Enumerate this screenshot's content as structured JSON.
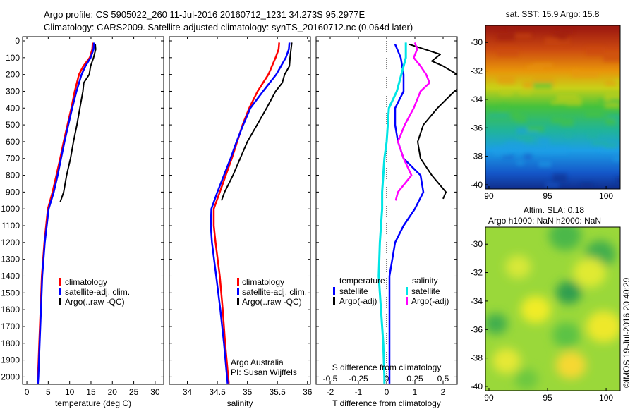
{
  "title": {
    "line1": "Argo profile: CS 5905022_260 11-Jul-2016 20160712_1231 34.273S 95.2977E",
    "line2": "Climatology: CARS2009. Satellite-adjusted climatology: synTS_20160712.nc (0.064d later)"
  },
  "colors": {
    "climatology": "#ff0000",
    "satellite": "#0000ff",
    "argo": "#000000",
    "argo_salinity_diff": "#ff00ff",
    "satellite_salinity_diff": "#00e5e5"
  },
  "depth_ticks": [
    "0",
    "100",
    "200",
    "300",
    "400",
    "500",
    "600",
    "700",
    "800",
    "900",
    "1000",
    "1100",
    "1200",
    "1300",
    "1400",
    "1500",
    "1600",
    "1700",
    "1800",
    "1900",
    "2000"
  ],
  "chart_data": [
    {
      "type": "line",
      "panel": "temperature",
      "xlabel": "temperature (deg C)",
      "xlim": [
        -1,
        32
      ],
      "ylim": [
        2060,
        0
      ],
      "x_ticks": [
        "0",
        "5",
        "10",
        "15",
        "20",
        "25",
        "30"
      ],
      "legend": [
        "climatology",
        "satellite-adj. clim.",
        "Argo(..raw -QC)"
      ],
      "series": [
        {
          "name": "climatology",
          "depth": [
            10,
            50,
            100,
            150,
            200,
            300,
            400,
            500,
            600,
            700,
            800,
            900,
            1000,
            1200,
            1400,
            1600,
            1800,
            2000,
            2040
          ],
          "values": [
            15.4,
            15.3,
            14.7,
            13.2,
            12.2,
            11.2,
            10.4,
            9.5,
            8.6,
            7.8,
            6.9,
            6.0,
            4.9,
            4.1,
            3.5,
            3.2,
            2.9,
            2.6,
            2.5
          ]
        },
        {
          "name": "satellite-adj. clim.",
          "depth": [
            10,
            50,
            100,
            150,
            200,
            300,
            400,
            500,
            600,
            700,
            800,
            900,
            1000,
            1200,
            1400,
            1600,
            1800,
            2000,
            2040
          ],
          "values": [
            15.7,
            15.6,
            14.9,
            13.7,
            12.8,
            11.6,
            10.6,
            9.7,
            8.8,
            8.0,
            7.2,
            6.3,
            5.1,
            4.2,
            3.6,
            3.3,
            3.0,
            2.7,
            2.6
          ]
        },
        {
          "name": "Argo(..raw -QC)",
          "depth": [
            20,
            50,
            100,
            150,
            200,
            250,
            300,
            400,
            500,
            600,
            700,
            800,
            900,
            960
          ],
          "values": [
            16.0,
            16.1,
            15.6,
            14.9,
            14.6,
            13.3,
            13.1,
            12.4,
            11.7,
            10.9,
            10.2,
            9.3,
            8.6,
            7.8
          ]
        }
      ]
    },
    {
      "type": "line",
      "panel": "salinity",
      "xlabel": "salinity",
      "xlim": [
        33.7,
        36.05
      ],
      "ylim": [
        2060,
        0
      ],
      "x_ticks": [
        "34",
        "34.5",
        "35",
        "35.5",
        "36"
      ],
      "legend": [
        "climatology",
        "satellite-adj. clim.",
        "Argo(..raw -QC)"
      ],
      "annotation": [
        "Argo Australia",
        "PI: Susan Wijffels"
      ],
      "series": [
        {
          "name": "climatology",
          "depth": [
            10,
            50,
            100,
            200,
            300,
            400,
            500,
            600,
            700,
            800,
            900,
            1000,
            1100,
            1200,
            1400,
            1600,
            1800,
            2000,
            2040
          ],
          "values": [
            35.53,
            35.52,
            35.47,
            35.35,
            35.17,
            35.03,
            34.92,
            34.83,
            34.74,
            34.64,
            34.54,
            34.44,
            34.44,
            34.47,
            34.54,
            34.59,
            34.63,
            34.68,
            34.69
          ]
        },
        {
          "name": "satellite-adj. clim.",
          "depth": [
            10,
            50,
            100,
            200,
            300,
            400,
            500,
            600,
            700,
            800,
            900,
            1000,
            1100,
            1200,
            1400,
            1600,
            1800,
            2000,
            2040
          ],
          "values": [
            35.7,
            35.69,
            35.64,
            35.48,
            35.26,
            35.05,
            34.93,
            34.82,
            34.72,
            34.61,
            34.5,
            34.4,
            34.39,
            34.41,
            34.48,
            34.55,
            34.61,
            34.66,
            34.67
          ]
        },
        {
          "name": "Argo(..raw -QC)",
          "depth": [
            10,
            100,
            150,
            200,
            250,
            300,
            400,
            500,
            600,
            700,
            800,
            900,
            950
          ],
          "values": [
            35.74,
            35.71,
            35.7,
            35.62,
            35.58,
            35.47,
            35.32,
            35.16,
            35.0,
            34.88,
            34.76,
            34.62,
            34.57
          ]
        }
      ]
    },
    {
      "type": "line",
      "panel": "difference",
      "xlabel": "T difference from climatology",
      "xlabel_top": "S difference from climatology",
      "t_xlim": [
        -2.5,
        2.5
      ],
      "t_ticks": [
        "-2",
        "-1",
        "0",
        "1",
        "2"
      ],
      "s_xlim": [
        -0.625,
        0.625
      ],
      "s_ticks": [
        "-0.5",
        "-0.25",
        "0",
        "0.25",
        "0.5"
      ],
      "ylim": [
        2060,
        0
      ],
      "legend_temperature_title": "temperature",
      "legend_salinity_title": "salinity",
      "legend_t": [
        "satellite",
        "Argo(-adj)"
      ],
      "legend_s": [
        "satellite",
        "Argo(-adj)"
      ],
      "series": [
        {
          "name": "T satellite",
          "variable": "T",
          "depth": [
            20,
            100,
            200,
            300,
            400,
            500,
            600,
            700,
            800,
            900,
            1000,
            1100,
            1200,
            1400,
            1600,
            1800,
            2000,
            2040
          ],
          "values": [
            0.3,
            0.5,
            0.6,
            0.6,
            0.3,
            0.3,
            0.4,
            0.6,
            1.2,
            1.3,
            1.0,
            0.6,
            0.3,
            0.1,
            0.1,
            0.1,
            0.1,
            0.1
          ]
        },
        {
          "name": "T Argo(-adj)",
          "variable": "T",
          "depth": [
            20,
            80,
            120,
            150,
            200,
            250,
            300,
            400,
            500,
            600,
            700,
            800,
            900,
            940
          ],
          "values": [
            0.8,
            1.9,
            1.6,
            2.0,
            2.5,
            2.9,
            2.4,
            1.8,
            1.3,
            1.1,
            1.2,
            1.6,
            2.1,
            2.0
          ]
        },
        {
          "name": "S satellite",
          "variable": "S",
          "depth": [
            10,
            50,
            100,
            200,
            300,
            400,
            500,
            600,
            700,
            800,
            900,
            1000,
            1100,
            1200,
            1400,
            1600,
            1800,
            2000,
            2040
          ],
          "values": [
            0.17,
            0.17,
            0.17,
            0.13,
            0.09,
            0.02,
            0.01,
            0.0,
            -0.02,
            -0.03,
            -0.04,
            -0.04,
            -0.05,
            -0.06,
            -0.07,
            -0.05,
            -0.03,
            -0.02,
            -0.02
          ]
        },
        {
          "name": "S Argo(-adj)",
          "variable": "S",
          "depth": [
            10,
            50,
            100,
            150,
            200,
            250,
            300,
            400,
            500,
            600,
            700,
            800,
            900,
            950
          ],
          "values": [
            0.25,
            0.27,
            0.24,
            0.3,
            0.35,
            0.38,
            0.3,
            0.24,
            0.16,
            0.1,
            0.15,
            0.22,
            0.1,
            0.08
          ]
        }
      ]
    },
    {
      "type": "heatmap",
      "panel": "sst_map",
      "title": "sat. SST: 15.9 Argo: 15.8",
      "xlim": [
        89.7,
        101.2
      ],
      "ylim": [
        -40.3,
        -28.8
      ],
      "x_ticks": [
        "90",
        "95",
        "100"
      ],
      "y_ticks": [
        "-30",
        "-32",
        "-34",
        "-36",
        "-38",
        "-40"
      ],
      "color_stops": [
        {
          "lat": -29.0,
          "color": "#9e1a10"
        },
        {
          "lat": -30.5,
          "color": "#cc4a10"
        },
        {
          "lat": -32.0,
          "color": "#e8950a"
        },
        {
          "lat": -33.2,
          "color": "#c8d018"
        },
        {
          "lat": -34.5,
          "color": "#46c23c"
        },
        {
          "lat": -36.2,
          "color": "#20b49a"
        },
        {
          "lat": -37.6,
          "color": "#1c9ee6"
        },
        {
          "lat": -39.2,
          "color": "#1456c8"
        },
        {
          "lat": -40.3,
          "color": "#102e8c"
        }
      ]
    },
    {
      "type": "heatmap",
      "panel": "sla_map",
      "title": "Altim. SLA: 0.18",
      "subtitle": "Argo h1000: NaN h2000: NaN",
      "xlim": [
        89.7,
        101.2
      ],
      "ylim": [
        -40.3,
        -28.8
      ],
      "x_ticks": [
        "90",
        "95",
        "100"
      ],
      "y_ticks": [
        "-30",
        "-32",
        "-34",
        "-36",
        "-38",
        "-40"
      ],
      "base_color": "#9ad83a",
      "blobs": [
        {
          "lon": 96.5,
          "lat": -29.4,
          "r": 1.4,
          "color": "#4cb84a"
        },
        {
          "lon": 99.5,
          "lat": -30.7,
          "r": 1.3,
          "color": "#3fae4e"
        },
        {
          "lon": 92.5,
          "lat": -31.6,
          "r": 1.1,
          "color": "#d8e838"
        },
        {
          "lon": 98.6,
          "lat": -32.0,
          "r": 1.4,
          "color": "#e0ea30"
        },
        {
          "lon": 96.8,
          "lat": -33.4,
          "r": 1.1,
          "color": "#2f9e50"
        },
        {
          "lon": 94.0,
          "lat": -34.6,
          "r": 1.3,
          "color": "#f0ec28"
        },
        {
          "lon": 90.6,
          "lat": -35.6,
          "r": 1.0,
          "color": "#3fae4e"
        },
        {
          "lon": 99.8,
          "lat": -35.8,
          "r": 1.5,
          "color": "#eee82c"
        },
        {
          "lon": 96.6,
          "lat": -36.4,
          "r": 1.2,
          "color": "#5cc244"
        },
        {
          "lon": 91.5,
          "lat": -38.2,
          "r": 1.2,
          "color": "#e6e834"
        },
        {
          "lon": 97.0,
          "lat": -38.5,
          "r": 1.3,
          "color": "#f6d830"
        },
        {
          "lon": 93.2,
          "lat": -39.5,
          "r": 1.0,
          "color": "#6cc840"
        }
      ]
    }
  ],
  "footer_stamp": "©IMOS 19-Jul-2016 20:40:29"
}
